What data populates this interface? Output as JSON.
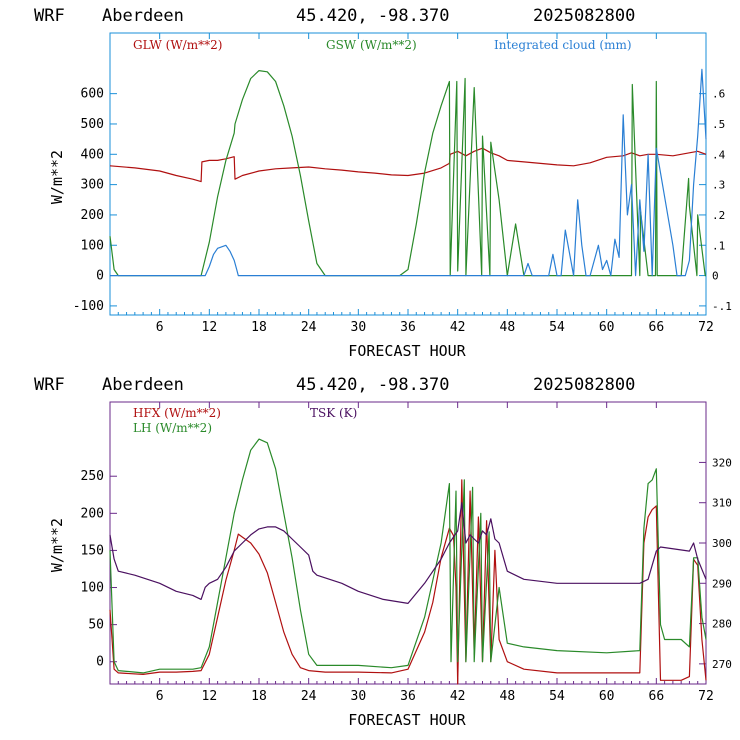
{
  "panels": [
    {
      "title": {
        "model": "WRF",
        "station": "Aberdeen",
        "coords": "45.420, -98.370",
        "init": "2025082800"
      },
      "xlabel": "FORECAST HOUR",
      "ylabel": "W/m**2",
      "legend": [
        {
          "label": "GLW (W/m**2)",
          "color": "#b01010"
        },
        {
          "label": "GSW (W/m**2)",
          "color": "#2a8a2a"
        },
        {
          "label": "Integrated cloud (mm)",
          "color": "#2a7fd4"
        }
      ],
      "axis_color": "#1a8fd8",
      "x_ticks": [
        "6",
        "12",
        "18",
        "24",
        "30",
        "36",
        "42",
        "48",
        "54",
        "60",
        "66",
        "72"
      ],
      "y_ticks": [
        "-100",
        "0",
        "100",
        "200",
        "300",
        "400",
        "500",
        "600"
      ],
      "y2_ticks": [
        "-.1",
        "0",
        ".1",
        ".2",
        ".3",
        ".4",
        ".5",
        ".6"
      ]
    },
    {
      "title": {
        "model": "WRF",
        "station": "Aberdeen",
        "coords": "45.420, -98.370",
        "init": "2025082800"
      },
      "xlabel": "FORECAST HOUR",
      "ylabel": "W/m**2",
      "legend": [
        {
          "label": "HFX (W/m**2)",
          "color": "#b01010"
        },
        {
          "label": "LH  (W/m**2)",
          "color": "#2a8a2a"
        },
        {
          "label": "TSK (K)",
          "color": "#4a1060"
        }
      ],
      "axis_color": "#6a2a8a",
      "x_ticks": [
        "6",
        "12",
        "18",
        "24",
        "30",
        "36",
        "42",
        "48",
        "54",
        "60",
        "66",
        "72"
      ],
      "y_ticks": [
        "0",
        "50",
        "100",
        "150",
        "200",
        "250"
      ],
      "y2_ticks": [
        "270",
        "280",
        "290",
        "300",
        "310",
        "320"
      ]
    }
  ],
  "chart_data": [
    {
      "type": "line",
      "xlabel": "FORECAST HOUR",
      "ylabel": "W/m**2",
      "xlim": [
        0,
        72
      ],
      "ylim": [
        -130,
        800
      ],
      "y2lim": [
        -0.13,
        0.8
      ],
      "x_ticks": [
        6,
        12,
        18,
        24,
        30,
        36,
        42,
        48,
        54,
        60,
        66,
        72
      ],
      "y_ticks": [
        -100,
        0,
        100,
        200,
        300,
        400,
        500,
        600
      ],
      "y2_ticks": [
        -0.1,
        0,
        0.1,
        0.2,
        0.3,
        0.4,
        0.5,
        0.6
      ],
      "series": [
        {
          "name": "GLW (W/m**2)",
          "axis": "left",
          "color": "#b01010",
          "x": [
            0,
            3,
            6,
            8,
            10,
            11,
            11.1,
            12,
            13,
            14,
            15,
            15.1,
            16,
            18,
            20,
            22,
            24,
            26,
            28,
            30,
            32,
            34,
            36,
            38,
            40,
            41,
            41.1,
            42,
            43,
            44,
            45,
            46,
            47,
            48,
            50,
            52,
            54,
            56,
            58,
            60,
            62,
            63,
            64,
            65,
            66,
            68,
            70,
            71,
            72
          ],
          "y": [
            362,
            355,
            345,
            330,
            318,
            310,
            375,
            380,
            380,
            385,
            392,
            318,
            330,
            345,
            352,
            355,
            358,
            352,
            348,
            342,
            338,
            332,
            330,
            338,
            355,
            370,
            400,
            410,
            395,
            410,
            420,
            405,
            395,
            380,
            375,
            370,
            365,
            362,
            372,
            390,
            395,
            405,
            395,
            400,
            400,
            395,
            405,
            410,
            400
          ]
        },
        {
          "name": "GSW (W/m**2)",
          "axis": "left",
          "color": "#2a8a2a",
          "x": [
            0,
            0.5,
            1,
            11,
            12,
            13,
            14,
            15,
            15.1,
            16,
            17,
            18,
            19,
            20,
            21,
            22,
            23,
            24,
            25,
            26,
            35,
            36,
            37,
            38,
            39,
            40,
            41,
            41.1,
            41.9,
            42,
            42.9,
            43,
            44,
            44.9,
            45,
            45.9,
            46,
            47,
            48,
            49,
            50,
            60,
            63,
            63.1,
            64,
            64.1,
            65,
            65.9,
            66,
            66.1,
            69,
            69.9,
            70,
            70.9,
            71,
            71.9,
            72
          ],
          "y": [
            130,
            20,
            0,
            0,
            110,
            260,
            380,
            470,
            500,
            580,
            650,
            676,
            672,
            640,
            560,
            460,
            330,
            180,
            40,
            0,
            0,
            20,
            170,
            340,
            470,
            560,
            640,
            0,
            640,
            15,
            650,
            0,
            620,
            0,
            460,
            0,
            440,
            250,
            0,
            170,
            0,
            0,
            0,
            630,
            0,
            210,
            0,
            0,
            640,
            0,
            0,
            320,
            230,
            0,
            200,
            0,
            0
          ]
        },
        {
          "name": "Integrated cloud (mm)",
          "axis": "right",
          "color": "#2a7fd4",
          "x": [
            0,
            11.5,
            12,
            12.5,
            13,
            14,
            14.5,
            15,
            15.3,
            15.5,
            50,
            50.5,
            51,
            51.5,
            52,
            53,
            53.5,
            54,
            54.5,
            55,
            56,
            56.5,
            57,
            57.5,
            58,
            59,
            59.5,
            60,
            60.5,
            61,
            61.5,
            62,
            62.5,
            63,
            63.5,
            64,
            64.5,
            65,
            65.5,
            66,
            68,
            68.5,
            69,
            69.5,
            70,
            70.5,
            71,
            71.5,
            72
          ],
          "y": [
            0,
            0,
            0.03,
            0.07,
            0.09,
            0.1,
            0.08,
            0.05,
            0.02,
            0,
            0,
            0.04,
            0,
            0,
            0,
            0,
            0.07,
            0,
            0,
            0.15,
            0,
            0.25,
            0.1,
            0,
            0,
            0.1,
            0.02,
            0.05,
            0,
            0.12,
            0.06,
            0.53,
            0.2,
            0.3,
            0,
            0.25,
            0.08,
            0.4,
            0,
            0.42,
            0.1,
            0,
            0,
            0,
            0.05,
            0.3,
            0.46,
            0.68,
            0.45
          ]
        }
      ]
    },
    {
      "type": "line",
      "xlabel": "FORECAST HOUR",
      "ylabel": "W/m**2",
      "xlim": [
        0,
        72
      ],
      "ylim": [
        -30,
        350
      ],
      "y2lim": [
        265,
        335
      ],
      "x_ticks": [
        6,
        12,
        18,
        24,
        30,
        36,
        42,
        48,
        54,
        60,
        66,
        72
      ],
      "y_ticks": [
        0,
        50,
        100,
        150,
        200,
        250
      ],
      "y2_ticks": [
        270,
        280,
        290,
        300,
        310,
        320
      ],
      "series": [
        {
          "name": "HFX (W/m**2)",
          "axis": "left",
          "color": "#b01010",
          "x": [
            0,
            0.5,
            1,
            4,
            6,
            8,
            10,
            11,
            12,
            13,
            14,
            15,
            15.5,
            16,
            17,
            18,
            19,
            20,
            21,
            22,
            23,
            24,
            25,
            26,
            30,
            34,
            36,
            38,
            39,
            40,
            41,
            41.5,
            41.8,
            42,
            42.5,
            43,
            43.5,
            44,
            44.5,
            45,
            45.5,
            46,
            46.5,
            47,
            48,
            50,
            54,
            60,
            64,
            64.5,
            65,
            65.5,
            66,
            66.5,
            67,
            69,
            70,
            70.5,
            71,
            71.5,
            72
          ],
          "y": [
            70,
            -10,
            -15,
            -17,
            -14,
            -14,
            -13,
            -12,
            10,
            60,
            110,
            150,
            172,
            168,
            160,
            145,
            120,
            80,
            40,
            10,
            -8,
            -12,
            -13,
            -14,
            -14,
            -15,
            -10,
            40,
            80,
            140,
            180,
            170,
            100,
            -30,
            245,
            0,
            230,
            10,
            195,
            0,
            190,
            0,
            150,
            30,
            0,
            -10,
            -15,
            -15,
            -15,
            160,
            195,
            205,
            210,
            -25,
            -25,
            -25,
            -20,
            138,
            130,
            30,
            -25
          ]
        },
        {
          "name": "LH  (W/m**2)",
          "axis": "left",
          "color": "#2a8a2a",
          "x": [
            0,
            0.5,
            1,
            4,
            6,
            10,
            11,
            12,
            13,
            14,
            15,
            16,
            17,
            18,
            19,
            20,
            21,
            22,
            23,
            24,
            25,
            26,
            30,
            34,
            36,
            38,
            40,
            41,
            41.2,
            41.8,
            42,
            42.8,
            43,
            43.8,
            44,
            44.8,
            45,
            45.8,
            46,
            47,
            48,
            50,
            54,
            60,
            64,
            64.5,
            65,
            65.5,
            66,
            66.5,
            67,
            69,
            70,
            70.5,
            71,
            71.5,
            72
          ],
          "y": [
            150,
            0,
            -12,
            -15,
            -10,
            -10,
            -8,
            20,
            80,
            140,
            200,
            245,
            285,
            300,
            295,
            260,
            200,
            140,
            70,
            10,
            -5,
            -5,
            -5,
            -8,
            -5,
            60,
            160,
            240,
            0,
            230,
            0,
            245,
            0,
            235,
            0,
            200,
            0,
            175,
            0,
            100,
            25,
            20,
            15,
            12,
            15,
            180,
            240,
            245,
            260,
            50,
            30,
            30,
            20,
            140,
            140,
            60,
            30
          ]
        },
        {
          "name": "TSK (K)",
          "axis": "right",
          "color": "#4a1060",
          "x": [
            0,
            0.5,
            1,
            3,
            6,
            8,
            10,
            11,
            11.5,
            12,
            13,
            14,
            15,
            16,
            17,
            18,
            19,
            20,
            21,
            22,
            23,
            24,
            24.5,
            25,
            28,
            30,
            33,
            36,
            38,
            40,
            41,
            42,
            42.5,
            43,
            43.5,
            44,
            44.5,
            45,
            45.5,
            46,
            46.5,
            47,
            48,
            50,
            54,
            58,
            60,
            64,
            65,
            66,
            66.5,
            70,
            70.5,
            71,
            72
          ],
          "y": [
            302,
            296,
            293,
            292,
            290,
            288,
            287,
            286,
            289,
            290,
            291,
            294,
            298,
            300,
            302,
            303.5,
            304,
            304,
            303,
            301,
            299,
            297,
            293,
            292,
            290,
            288,
            286,
            285,
            290,
            296,
            300,
            303,
            310,
            300,
            302,
            301,
            300,
            303,
            302,
            306,
            301,
            300,
            293,
            291,
            290,
            290,
            290,
            290,
            291,
            298,
            299,
            298,
            300,
            296,
            291
          ]
        }
      ]
    }
  ]
}
